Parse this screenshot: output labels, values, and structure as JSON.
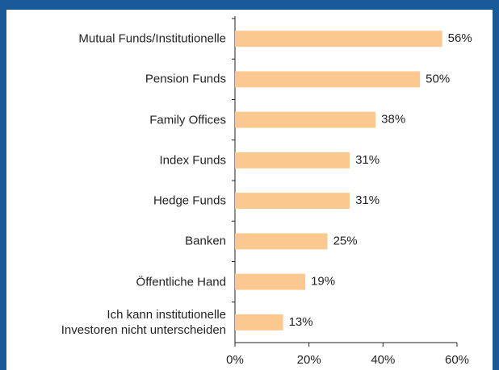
{
  "chart_data": {
    "type": "bar",
    "orientation": "horizontal",
    "categories": [
      "Mutual Funds/Institutionelle",
      "Pension Funds",
      "Family Offices",
      "Index Funds",
      "Hedge Funds",
      "Banken",
      "Öffentliche Hand",
      "Ich kann institutionelle\nInvestoren nicht unterscheiden"
    ],
    "values": [
      56,
      50,
      38,
      31,
      31,
      25,
      19,
      13
    ],
    "value_labels": [
      "56%",
      "50%",
      "38%",
      "31%",
      "31%",
      "25%",
      "19%",
      "13%"
    ],
    "color": "#fbc98f",
    "xlim": [
      0,
      60
    ],
    "xticks": [
      {
        "value": 0,
        "label": "0%"
      },
      {
        "value": 20,
        "label": "20%"
      },
      {
        "value": 40,
        "label": "40%"
      },
      {
        "value": 60,
        "label": "60%"
      }
    ],
    "grid": false
  }
}
